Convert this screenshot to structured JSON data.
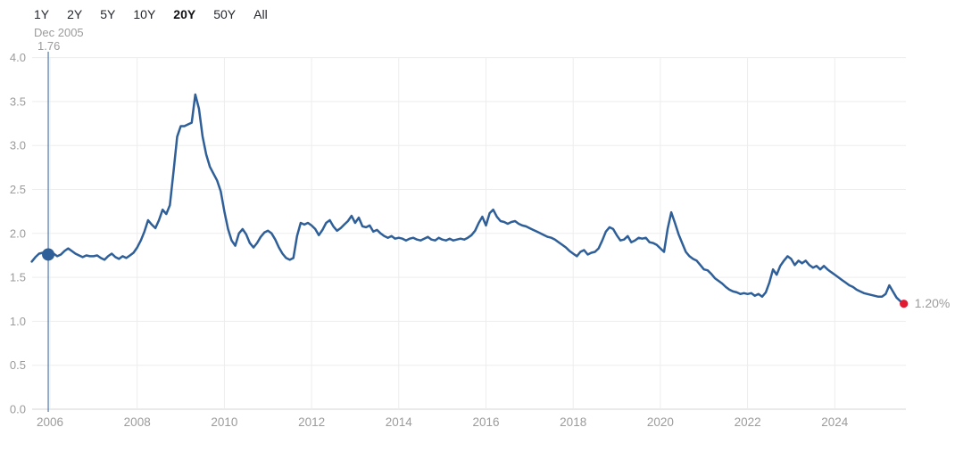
{
  "range_selector": {
    "items": [
      {
        "label": "1Y",
        "selected": false
      },
      {
        "label": "2Y",
        "selected": false
      },
      {
        "label": "5Y",
        "selected": false
      },
      {
        "label": "10Y",
        "selected": false
      },
      {
        "label": "20Y",
        "selected": true
      },
      {
        "label": "50Y",
        "selected": false
      },
      {
        "label": "All",
        "selected": false
      }
    ]
  },
  "colors": {
    "line": "#2f5f98",
    "crosshair": "#527aa8",
    "hover_dot": "#2f5f98",
    "end_dot": "#e11931",
    "grid": "#ededed",
    "axis_line": "#d4d4d4",
    "tick_label": "#9b9b9b",
    "tooltip_text": "#9b9b9b",
    "end_label_text": "#9b9b9b"
  },
  "chart_data": {
    "type": "line",
    "title": "",
    "xlabel": "",
    "ylabel": "",
    "ylim": [
      0.0,
      4.0
    ],
    "xlim": [
      2005.5,
      2025.65
    ],
    "grid": true,
    "legend": "none",
    "y_ticks": [
      4.0,
      3.5,
      3.0,
      2.5,
      2.0,
      1.5,
      1.0,
      0.5,
      0.0
    ],
    "x_ticks": [
      2006,
      2008,
      2010,
      2012,
      2014,
      2016,
      2018,
      2020,
      2022,
      2024
    ],
    "hover_point": {
      "label_date": "Dec 2005",
      "label_value": "1.76",
      "x_year": 2005.96,
      "value": 1.76
    },
    "last_point": {
      "label": "1.20%",
      "x_year": 2025.5833,
      "value": 1.2
    },
    "series": [
      {
        "name": "rate-percent",
        "x_start_year": 2005.5833,
        "x_step_years": 0.0833333,
        "values": [
          1.68,
          1.73,
          1.77,
          1.78,
          1.76,
          1.76,
          1.77,
          1.74,
          1.76,
          1.8,
          1.83,
          1.8,
          1.77,
          1.75,
          1.73,
          1.75,
          1.74,
          1.74,
          1.75,
          1.72,
          1.7,
          1.74,
          1.77,
          1.73,
          1.71,
          1.74,
          1.72,
          1.75,
          1.78,
          1.84,
          1.92,
          2.02,
          2.15,
          2.1,
          2.06,
          2.15,
          2.27,
          2.22,
          2.32,
          2.7,
          3.1,
          3.22,
          3.22,
          3.24,
          3.26,
          3.58,
          3.42,
          3.1,
          2.9,
          2.76,
          2.68,
          2.6,
          2.48,
          2.25,
          2.05,
          1.92,
          1.86,
          2.0,
          2.05,
          1.99,
          1.89,
          1.84,
          1.89,
          1.96,
          2.01,
          2.03,
          2.0,
          1.93,
          1.84,
          1.77,
          1.72,
          1.7,
          1.72,
          1.97,
          2.12,
          2.1,
          2.12,
          2.09,
          2.05,
          1.98,
          2.04,
          2.12,
          2.15,
          2.08,
          2.03,
          2.06,
          2.1,
          2.14,
          2.2,
          2.12,
          2.18,
          2.08,
          2.07,
          2.09,
          2.02,
          2.04,
          2.0,
          1.97,
          1.95,
          1.97,
          1.94,
          1.95,
          1.94,
          1.92,
          1.94,
          1.95,
          1.93,
          1.92,
          1.94,
          1.96,
          1.93,
          1.92,
          1.95,
          1.93,
          1.92,
          1.94,
          1.92,
          1.93,
          1.94,
          1.93,
          1.95,
          1.98,
          2.03,
          2.12,
          2.19,
          2.09,
          2.23,
          2.27,
          2.19,
          2.14,
          2.13,
          2.11,
          2.13,
          2.14,
          2.11,
          2.09,
          2.08,
          2.06,
          2.04,
          2.02,
          2.0,
          1.98,
          1.96,
          1.95,
          1.93,
          1.9,
          1.87,
          1.84,
          1.8,
          1.77,
          1.74,
          1.79,
          1.81,
          1.76,
          1.78,
          1.79,
          1.83,
          1.92,
          2.02,
          2.07,
          2.05,
          1.98,
          1.92,
          1.93,
          1.97,
          1.9,
          1.92,
          1.95,
          1.94,
          1.95,
          1.9,
          1.89,
          1.87,
          1.83,
          1.79,
          2.05,
          2.24,
          2.12,
          1.99,
          1.89,
          1.79,
          1.74,
          1.71,
          1.69,
          1.64,
          1.59,
          1.58,
          1.54,
          1.49,
          1.46,
          1.43,
          1.39,
          1.36,
          1.34,
          1.33,
          1.31,
          1.32,
          1.31,
          1.32,
          1.29,
          1.31,
          1.28,
          1.33,
          1.44,
          1.59,
          1.53,
          1.63,
          1.69,
          1.74,
          1.71,
          1.64,
          1.69,
          1.66,
          1.69,
          1.64,
          1.61,
          1.63,
          1.59,
          1.63,
          1.59,
          1.56,
          1.53,
          1.5,
          1.47,
          1.44,
          1.41,
          1.39,
          1.36,
          1.34,
          1.32,
          1.31,
          1.3,
          1.29,
          1.28,
          1.28,
          1.31,
          1.41,
          1.34,
          1.27,
          1.23,
          1.2
        ]
      }
    ]
  }
}
